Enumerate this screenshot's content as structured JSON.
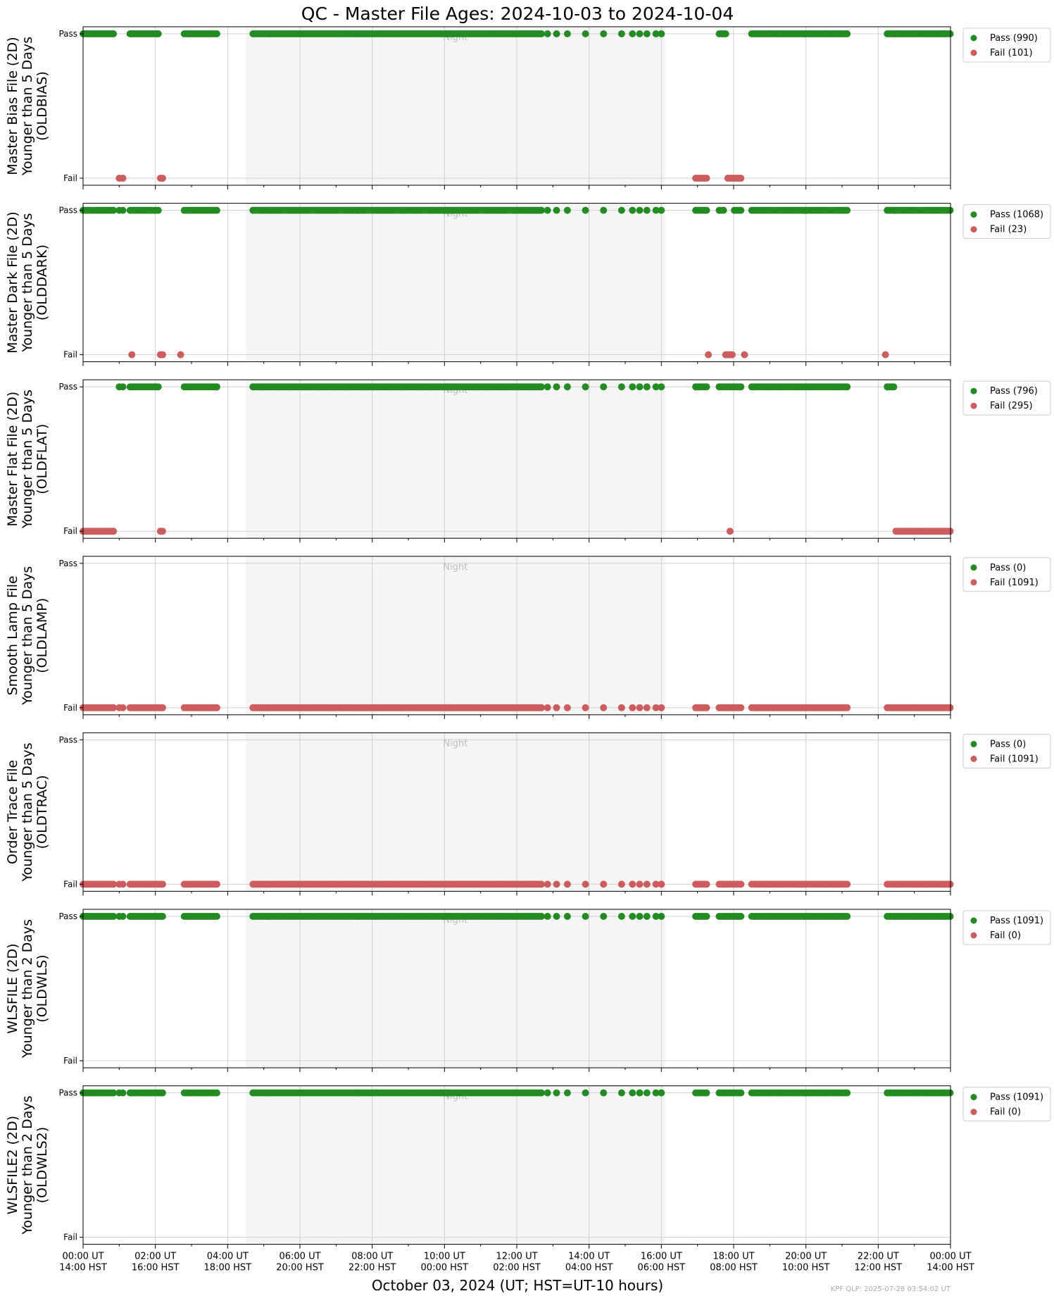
{
  "chart_data": {
    "type": "scatter",
    "title": "QC - Master File Ages: 2024-10-03 to 2024-10-04",
    "xlabel": "October 03, 2024 (UT; HST=UT-10 hours)",
    "footer": "KPF QLP: 2025-07-28 03:54:02 UT",
    "night_label": "Night",
    "x_unit": "hours UT since 2024-10-03 00:00 UT",
    "xlim": [
      0,
      24
    ],
    "night_interval": [
      4.5,
      16.1
    ],
    "y_categories": [
      "Fail",
      "Pass"
    ],
    "grid": true,
    "legend_position": "outside-right",
    "colors": {
      "pass": "#228b22",
      "fail": "#cd5c5c",
      "night": "#f5f5f5",
      "grid": "#d0d0d0"
    },
    "x_ticks": [
      {
        "ut": "00:00 UT",
        "hst": "14:00 HST",
        "x": 0
      },
      {
        "ut": "02:00 UT",
        "hst": "16:00 HST",
        "x": 2
      },
      {
        "ut": "04:00 UT",
        "hst": "18:00 HST",
        "x": 4
      },
      {
        "ut": "06:00 UT",
        "hst": "20:00 HST",
        "x": 6
      },
      {
        "ut": "08:00 UT",
        "hst": "22:00 HST",
        "x": 8
      },
      {
        "ut": "10:00 UT",
        "hst": "00:00 HST",
        "x": 10
      },
      {
        "ut": "12:00 UT",
        "hst": "02:00 HST",
        "x": 12
      },
      {
        "ut": "14:00 UT",
        "hst": "04:00 HST",
        "x": 14
      },
      {
        "ut": "16:00 UT",
        "hst": "06:00 HST",
        "x": 16
      },
      {
        "ut": "18:00 UT",
        "hst": "08:00 HST",
        "x": 18
      },
      {
        "ut": "20:00 UT",
        "hst": "10:00 HST",
        "x": 20
      },
      {
        "ut": "22:00 UT",
        "hst": "12:00 HST",
        "x": 22
      },
      {
        "ut": "00:00 UT",
        "hst": "14:00 HST",
        "x": 24
      }
    ],
    "exposure_times": {
      "clusters": [
        [
          0.0,
          0.85
        ],
        [
          1.3,
          2.2
        ],
        [
          2.8,
          3.7
        ],
        [
          4.7,
          12.7
        ],
        [
          16.95,
          17.3
        ],
        [
          17.6,
          18.2
        ],
        [
          18.5,
          21.15
        ],
        [
          22.25,
          24.0
        ]
      ],
      "singles": [
        1.0,
        1.1,
        12.85,
        13.1,
        13.4,
        13.9,
        14.4,
        14.9,
        15.2,
        15.4,
        15.6,
        15.85,
        16.0
      ]
    },
    "panels": [
      {
        "ylabel": [
          "Master Bias File (2D)",
          "Younger than 5 Days",
          "(OLDBIAS)"
        ],
        "legend": [
          "Pass (990)",
          "Fail (101)"
        ],
        "fail_ranges": [
          [
            0.95,
            1.25
          ],
          [
            2.1,
            2.55
          ],
          [
            16.95,
            17.3
          ],
          [
            17.8,
            18.2
          ]
        ],
        "fail_singles": [],
        "all_pass": false,
        "all_fail": false,
        "show_night_label": true
      },
      {
        "ylabel": [
          "Master Dark File (2D)",
          "Younger than 5 Days",
          "(OLDDARK)"
        ],
        "legend": [
          "Pass (1068)",
          "Fail (23)"
        ],
        "fail_ranges": [
          [
            2.1,
            2.35
          ],
          [
            17.75,
            18.0
          ]
        ],
        "fail_singles": [
          1.35,
          2.7,
          17.3,
          18.3,
          22.2
        ],
        "all_pass": false,
        "all_fail": false,
        "show_night_label": true
      },
      {
        "ylabel": [
          "Master Flat File (2D)",
          "Younger than 5 Days",
          "(OLDFLAT)"
        ],
        "legend": [
          "Pass (796)",
          "Fail (295)"
        ],
        "fail_ranges": [
          [
            0.0,
            0.85
          ],
          [
            2.1,
            2.35
          ],
          [
            22.45,
            24.0
          ]
        ],
        "fail_singles": [
          17.9
        ],
        "all_pass": false,
        "all_fail": false,
        "show_night_label": true
      },
      {
        "ylabel": [
          "Smooth Lamp File",
          "Younger than 5 Days",
          "(OLDLAMP)"
        ],
        "legend": [
          "Pass (0)",
          "Fail (1091)"
        ],
        "fail_ranges": [],
        "fail_singles": [],
        "all_pass": false,
        "all_fail": true,
        "show_night_label": true
      },
      {
        "ylabel": [
          "Order Trace File",
          "Younger than 5 Days",
          "(OLDTRAC)"
        ],
        "legend": [
          "Pass (0)",
          "Fail (1091)"
        ],
        "fail_ranges": [],
        "fail_singles": [],
        "all_pass": false,
        "all_fail": true,
        "show_night_label": true
      },
      {
        "ylabel": [
          "WLSFILE (2D)",
          "Younger than 2 Days",
          "(OLDWLS)"
        ],
        "legend": [
          "Pass (1091)",
          "Fail (0)"
        ],
        "fail_ranges": [],
        "fail_singles": [],
        "all_pass": true,
        "all_fail": false,
        "show_night_label": true
      },
      {
        "ylabel": [
          "WLSFILE2 (2D)",
          "Younger than 2 Days",
          "(OLDWLS2)"
        ],
        "legend": [
          "Pass (1091)",
          "Fail (0)"
        ],
        "fail_ranges": [],
        "fail_singles": [],
        "all_pass": true,
        "all_fail": false,
        "show_night_label": true
      }
    ]
  }
}
